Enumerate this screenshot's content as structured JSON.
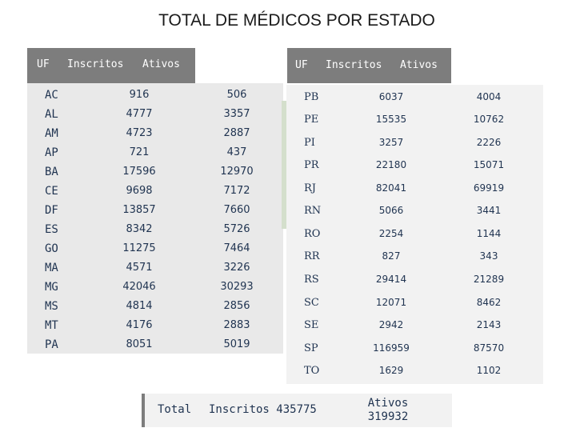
{
  "title": "TOTAL DE MÉDICOS POR ESTADO",
  "left_table": {
    "headers": {
      "uf": "UF",
      "inscritos": "Inscritos",
      "ativos": "Ativos"
    },
    "rows": [
      {
        "uf": "AC",
        "inscritos": "916",
        "ativos": "506"
      },
      {
        "uf": "AL",
        "inscritos": "4777",
        "ativos": "3357"
      },
      {
        "uf": "AM",
        "inscritos": "4723",
        "ativos": "2887"
      },
      {
        "uf": "AP",
        "inscritos": "721",
        "ativos": "437"
      },
      {
        "uf": "BA",
        "inscritos": "17596",
        "ativos": "12970"
      },
      {
        "uf": "CE",
        "inscritos": "9698",
        "ativos": "7172"
      },
      {
        "uf": "DF",
        "inscritos": "13857",
        "ativos": "7660"
      },
      {
        "uf": "ES",
        "inscritos": "8342",
        "ativos": "5726"
      },
      {
        "uf": "GO",
        "inscritos": "11275",
        "ativos": "7464"
      },
      {
        "uf": "MA",
        "inscritos": "4571",
        "ativos": "3226"
      },
      {
        "uf": "MG",
        "inscritos": "42046",
        "ativos": "30293"
      },
      {
        "uf": "MS",
        "inscritos": "4814",
        "ativos": "2856"
      },
      {
        "uf": "MT",
        "inscritos": "4176",
        "ativos": "2883"
      },
      {
        "uf": "PA",
        "inscritos": "8051",
        "ativos": "5019"
      }
    ]
  },
  "right_table": {
    "headers": {
      "uf": "UF",
      "inscritos": "Inscritos",
      "ativos": "Ativos"
    },
    "rows": [
      {
        "uf": "PB",
        "inscritos": "6037",
        "ativos": "4004"
      },
      {
        "uf": "PE",
        "inscritos": "15535",
        "ativos": "10762"
      },
      {
        "uf": "PI",
        "inscritos": "3257",
        "ativos": "2226"
      },
      {
        "uf": "PR",
        "inscritos": "22180",
        "ativos": "15071"
      },
      {
        "uf": "RJ",
        "inscritos": "82041",
        "ativos": "69919"
      },
      {
        "uf": "RN",
        "inscritos": "5066",
        "ativos": "3441"
      },
      {
        "uf": "RO",
        "inscritos": "2254",
        "ativos": "1144"
      },
      {
        "uf": "RR",
        "inscritos": "827",
        "ativos": "343"
      },
      {
        "uf": "RS",
        "inscritos": "29414",
        "ativos": "21289"
      },
      {
        "uf": "SC",
        "inscritos": "12071",
        "ativos": "8462"
      },
      {
        "uf": "SE",
        "inscritos": "2942",
        "ativos": "2143"
      },
      {
        "uf": "SP",
        "inscritos": "116959",
        "ativos": "87570"
      },
      {
        "uf": "TO",
        "inscritos": "1629",
        "ativos": "1102"
      }
    ]
  },
  "total": {
    "label": "Total",
    "inscritos_text": "Inscritos 435775",
    "ativos_label": "Ativos",
    "ativos_value": "319932"
  }
}
